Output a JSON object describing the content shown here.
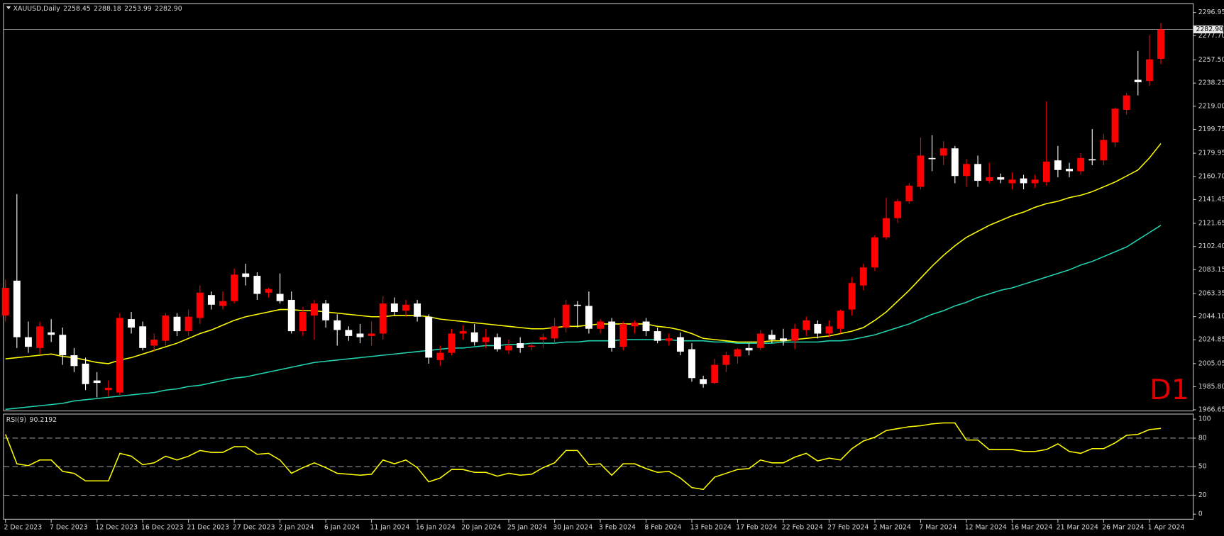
{
  "chart_data": [
    {
      "type": "candlestick",
      "title": "XAUUSD,Daily",
      "quote": [
        {
          "value": 2258.45,
          "label": "2258.45"
        },
        {
          "value": 2288.18,
          "label": "2288.18"
        },
        {
          "value": 2253.99,
          "label": "2253.99"
        },
        {
          "value": 2282.9,
          "label": "2282.90"
        }
      ],
      "annotation": "D1",
      "categories": [
        "2 Dec 2023",
        null,
        null,
        null,
        "7 Dec 2023",
        null,
        null,
        null,
        "12 Dec 2023",
        null,
        null,
        null,
        "16 Dec 2023",
        null,
        null,
        null,
        "21 Dec 2023",
        null,
        null,
        null,
        "27 Dec 2023",
        null,
        null,
        null,
        "2 Jan 2024",
        null,
        null,
        null,
        "6 Jan 2024",
        null,
        null,
        null,
        "11 Jan 2024",
        null,
        null,
        null,
        "16 Jan 2024",
        null,
        null,
        null,
        "20 Jan 2024",
        null,
        null,
        null,
        "25 Jan 2024",
        null,
        null,
        null,
        "30 Jan 2024",
        null,
        null,
        null,
        "3 Feb 2024",
        null,
        null,
        null,
        "8 Feb 2024",
        null,
        null,
        null,
        "13 Feb 2024",
        null,
        null,
        null,
        "17 Feb 2024",
        null,
        null,
        null,
        "22 Feb 2024",
        null,
        null,
        null,
        "27 Feb 2024",
        null,
        null,
        null,
        "2 Mar 2024",
        null,
        null,
        null,
        "7 Mar 2024",
        null,
        null,
        null,
        "12 Mar 2024",
        null,
        null,
        null,
        "16 Mar 2024",
        null,
        null,
        null,
        "21 Mar 2024",
        null,
        null,
        null,
        "26 Mar 2024",
        null,
        null,
        null,
        "1 Apr 2024",
        null
      ],
      "open": [
        2045,
        2074,
        2027,
        2018,
        2031,
        2029,
        2012,
        2005,
        1991,
        1983,
        1981,
        2042,
        2036,
        2020,
        2024,
        2044,
        2032,
        2043,
        2062,
        2053,
        2057,
        2080,
        2078,
        2064,
        2063,
        2058,
        2032,
        2045,
        2055,
        2041,
        2033,
        2030,
        2028,
        2030,
        2055,
        2049,
        2055,
        2044,
        2008,
        2014,
        2030,
        2031,
        2023,
        2027,
        2016,
        2022,
        2019,
        2025,
        2026,
        2035,
        2054,
        2053,
        2034,
        2040,
        2019,
        2036,
        2040,
        2032,
        2024,
        2027,
        2017,
        1992,
        1989,
        2004,
        2011,
        2018,
        2018,
        2029,
        2026,
        2024,
        2033,
        2038,
        2030,
        2034,
        2050,
        2070,
        2085,
        2110,
        2126,
        2140,
        2152,
        2176,
        2178,
        2184,
        2161,
        2171,
        2157,
        2160,
        2155,
        2159,
        2155,
        2156,
        2174,
        2167,
        2165,
        2175,
        2174,
        2189,
        2216,
        2241,
        2240,
        2258.45
      ],
      "high": [
        2075,
        2146,
        2040,
        2040,
        2042,
        2035,
        2018,
        2010,
        1998,
        1991,
        2047,
        2048,
        2040,
        2030,
        2047,
        2047,
        2050,
        2070,
        2065,
        2065,
        2084,
        2088,
        2081,
        2068,
        2080,
        2065,
        2052,
        2058,
        2058,
        2046,
        2036,
        2038,
        2040,
        2061,
        2060,
        2058,
        2058,
        2046,
        2020,
        2034,
        2037,
        2038,
        2034,
        2030,
        2025,
        2027,
        2022,
        2030,
        2043,
        2058,
        2057,
        2065,
        2042,
        2043,
        2040,
        2041,
        2043,
        2035,
        2030,
        2031,
        2022,
        1995,
        2009,
        2015,
        2018,
        2022,
        2033,
        2033,
        2034,
        2038,
        2044,
        2041,
        2041,
        2050,
        2077,
        2088,
        2112,
        2143,
        2142,
        2155,
        2193,
        2195,
        2190,
        2186,
        2175,
        2178,
        2172,
        2163,
        2164,
        2162,
        2162,
        2223,
        2186,
        2172,
        2180,
        2200,
        2196,
        2218,
        2230,
        2265,
        2278,
        2288.18
      ],
      "low": [
        2040,
        2018,
        2014,
        2013,
        2023,
        2004,
        1998,
        1983,
        1977,
        1978,
        1979,
        2030,
        2016,
        2015,
        2020,
        2028,
        2028,
        2038,
        2050,
        2050,
        2055,
        2070,
        2058,
        2060,
        2055,
        2030,
        2028,
        2025,
        2035,
        2020,
        2024,
        2022,
        2020,
        2025,
        2045,
        2044,
        2040,
        2005,
        2003,
        2012,
        2025,
        2020,
        2018,
        2015,
        2013,
        2014,
        2016,
        2018,
        2022,
        2031,
        2035,
        2030,
        2030,
        2015,
        2016,
        2030,
        2028,
        2022,
        2020,
        2012,
        1990,
        1985,
        1988,
        1998,
        2005,
        2012,
        2016,
        2022,
        2020,
        2017,
        2028,
        2026,
        2027,
        2030,
        2045,
        2066,
        2082,
        2108,
        2122,
        2138,
        2150,
        2165,
        2170,
        2155,
        2152,
        2152,
        2155,
        2155,
        2150,
        2150,
        2151,
        2153,
        2160,
        2160,
        2162,
        2170,
        2170,
        2185,
        2212,
        2228,
        2236,
        2253.99
      ],
      "close": [
        2068,
        2027,
        2019,
        2036,
        2029,
        2012,
        2003,
        1988,
        1989,
        1985,
        2043,
        2035,
        2018,
        2025,
        2045,
        2032,
        2044,
        2064,
        2054,
        2057,
        2079,
        2077,
        2063,
        2067,
        2057,
        2032,
        2048,
        2055,
        2041,
        2033,
        2028,
        2027,
        2030,
        2055,
        2048,
        2054,
        2044,
        2010,
        2014,
        2030,
        2032,
        2023,
        2027,
        2017,
        2020,
        2018,
        2020,
        2027,
        2036,
        2054,
        2053,
        2034,
        2040,
        2018,
        2038,
        2039,
        2032,
        2024,
        2026,
        2015,
        1993,
        1988,
        2004,
        2012,
        2017,
        2016,
        2030,
        2025,
        2024,
        2034,
        2041,
        2030,
        2036,
        2049,
        2072,
        2085,
        2110,
        2126,
        2140,
        2153,
        2178,
        2175,
        2184,
        2161,
        2171,
        2157,
        2160,
        2158,
        2158,
        2155,
        2158,
        2173,
        2166,
        2165,
        2176,
        2174,
        2191,
        2217,
        2228,
        2239,
        2258,
        2282.9
      ],
      "up_color": "#ff0000",
      "down_color": "#ffffff",
      "series": [
        {
          "color": "#ffff00",
          "values": [
            2009,
            2010,
            2011,
            2012,
            2013,
            2011,
            2010,
            2008,
            2006,
            2005,
            2008,
            2010,
            2013,
            2016,
            2019,
            2022,
            2026,
            2030,
            2033,
            2037,
            2041,
            2044,
            2046,
            2048,
            2050,
            2050,
            2049,
            2049,
            2048,
            2047,
            2046,
            2045,
            2044,
            2044,
            2045,
            2045,
            2045,
            2044,
            2042,
            2041,
            2040,
            2039,
            2038,
            2037,
            2036,
            2035,
            2034,
            2034,
            2035,
            2036,
            2036,
            2037,
            2038,
            2038,
            2038,
            2038,
            2038,
            2036,
            2035,
            2033,
            2030,
            2026,
            2025,
            2024,
            2023,
            2023,
            2023,
            2024,
            2024,
            2025,
            2026,
            2027,
            2028,
            2030,
            2032,
            2035,
            2041,
            2048,
            2057,
            2066,
            2076,
            2086,
            2095,
            2103,
            2110,
            2115,
            2120,
            2124,
            2128,
            2131,
            2135,
            2138,
            2140,
            2143,
            2145,
            2148,
            2152,
            2156,
            2161,
            2166,
            2176,
            2188
          ]
        },
        {
          "color": "#1fd6b0",
          "values": [
            1967,
            1968,
            1969,
            1970,
            1971,
            1972,
            1974,
            1975,
            1976,
            1977,
            1978,
            1979,
            1980,
            1981,
            1983,
            1984,
            1986,
            1987,
            1989,
            1991,
            1993,
            1994,
            1996,
            1998,
            2000,
            2002,
            2004,
            2006,
            2007,
            2008,
            2009,
            2010,
            2011,
            2012,
            2013,
            2014,
            2015,
            2016,
            2017,
            2018,
            2018,
            2019,
            2020,
            2020,
            2021,
            2021,
            2022,
            2022,
            2022,
            2023,
            2023,
            2024,
            2024,
            2024,
            2025,
            2025,
            2025,
            2025,
            2025,
            2024,
            2024,
            2024,
            2023,
            2023,
            2022,
            2022,
            2022,
            2022,
            2023,
            2023,
            2023,
            2023,
            2024,
            2024,
            2025,
            2027,
            2029,
            2032,
            2035,
            2038,
            2042,
            2046,
            2049,
            2053,
            2056,
            2060,
            2063,
            2066,
            2068,
            2071,
            2074,
            2077,
            2080,
            2083,
            2087,
            2090,
            2094,
            2098,
            2102,
            2108,
            2114,
            2120
          ]
        }
      ],
      "ylim": [
        1966.65,
        2296.95
      ],
      "yticks": [
        {
          "value": 2296.95,
          "label": "2296.95"
        },
        {
          "value": 2277.7,
          "label": "2277.70"
        },
        {
          "value": 2257.5,
          "label": "2257.50"
        },
        {
          "value": 2238.25,
          "label": "2238.25"
        },
        {
          "value": 2219,
          "label": "2219.00"
        },
        {
          "value": 2199.75,
          "label": "2199.75"
        },
        {
          "value": 2179.95,
          "label": "2179.95"
        },
        {
          "value": 2160.7,
          "label": "2160.70"
        },
        {
          "value": 2141.45,
          "label": "2141.45"
        },
        {
          "value": 2121.65,
          "label": "2121.65"
        },
        {
          "value": 2102.4,
          "label": "2102.40"
        },
        {
          "value": 2083.15,
          "label": "2083.15"
        },
        {
          "value": 2063.35,
          "label": "2063.35"
        },
        {
          "value": 2044.1,
          "label": "2044.10"
        },
        {
          "value": 2024.85,
          "label": "2024.85"
        },
        {
          "value": 2005.05,
          "label": "2005.05"
        },
        {
          "value": 1985.8,
          "label": "1985.80"
        },
        {
          "value": 1966.65,
          "label": "1966.65"
        }
      ],
      "grid": false
    },
    {
      "type": "line",
      "title": "RSI(9)",
      "color": "#ffff00",
      "values": [
        84,
        53,
        51,
        57,
        57,
        45,
        43,
        35,
        35,
        35,
        64,
        61,
        52,
        54,
        61,
        57,
        61,
        67,
        65,
        65,
        71,
        71,
        63,
        64,
        57,
        43,
        49,
        54,
        49,
        43,
        42,
        41,
        42,
        57,
        53,
        57,
        49,
        34,
        38,
        47,
        47,
        44,
        44,
        40,
        43,
        41,
        42,
        49,
        54,
        67,
        67,
        52,
        53,
        41,
        53,
        53,
        48,
        44,
        45,
        38,
        28,
        26,
        39,
        43,
        47,
        48,
        57,
        54,
        54,
        60,
        64,
        56,
        59,
        57,
        69,
        77,
        81,
        88,
        90,
        92,
        93,
        95,
        96,
        96,
        78,
        78,
        68,
        68,
        68,
        66,
        66,
        68,
        74,
        66,
        64,
        69,
        69,
        75,
        83,
        84,
        89,
        90.2192
      ],
      "ylim": [
        0,
        100
      ],
      "yticks": [
        100,
        80,
        50,
        20,
        0
      ],
      "levels": [
        80,
        50,
        20
      ]
    }
  ]
}
